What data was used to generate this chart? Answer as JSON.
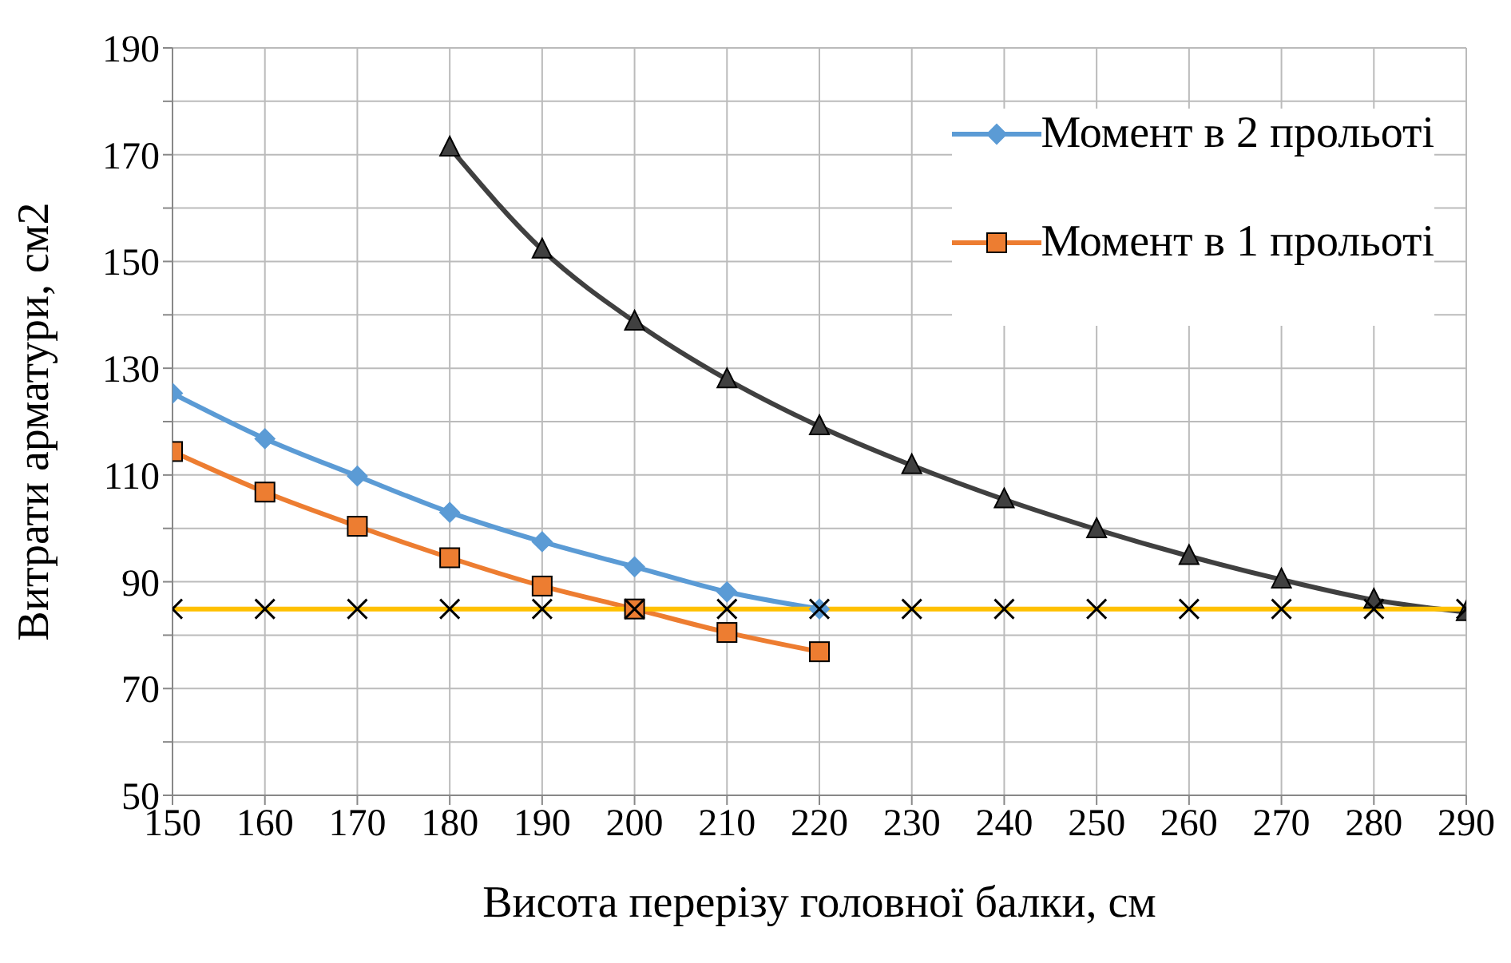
{
  "chart_data": {
    "type": "line",
    "xlabel": "Висота перерізу головної балки, см",
    "ylabel": "Витрати арматури, см2",
    "x": [
      150,
      160,
      170,
      180,
      190,
      200,
      210,
      220,
      230,
      240,
      250,
      260,
      270,
      280,
      290
    ],
    "series": [
      {
        "name": "Момент в 2 прольоті",
        "color": "#5b9bd5",
        "marker": "diamond",
        "values": [
          125.3,
          116.8,
          109.8,
          103.0,
          97.5,
          92.8,
          88.1,
          84.9,
          null,
          null,
          null,
          null,
          null,
          null,
          null
        ]
      },
      {
        "name": "Момент в 1 прольоті",
        "color": "#ed7d31",
        "marker": "square",
        "values": [
          114.4,
          106.8,
          100.4,
          94.5,
          89.2,
          84.9,
          80.5,
          76.9,
          null,
          null,
          null,
          null,
          null,
          null,
          null
        ]
      },
      {
        "color": "#404040",
        "marker": "triangle",
        "values": [
          null,
          null,
          null,
          171.3,
          152.2,
          138.7,
          127.9,
          119.1,
          111.8,
          105.4,
          99.8,
          94.8,
          90.4,
          86.6,
          84.3
        ]
      },
      {
        "color": "#ffc000",
        "marker": "cross",
        "values": [
          84.9,
          84.9,
          84.9,
          84.9,
          84.9,
          84.9,
          84.9,
          84.9,
          84.9,
          84.9,
          84.9,
          84.9,
          84.9,
          84.9,
          84.9
        ]
      }
    ],
    "xlim": [
      150,
      290
    ],
    "xticks": [
      150,
      160,
      170,
      180,
      190,
      200,
      210,
      220,
      230,
      240,
      250,
      260,
      270,
      280,
      290
    ],
    "ylim": [
      50,
      190
    ],
    "yticks": [
      50,
      {
        "value": 60,
        "label": null
      },
      70,
      {
        "value": 80,
        "label": null
      },
      90,
      {
        "value": 100,
        "label": null
      },
      110,
      {
        "value": 120,
        "label": null
      },
      130,
      {
        "value": 140,
        "label": null
      },
      150,
      {
        "value": 160,
        "label": null
      },
      170,
      {
        "value": 180,
        "label": null
      },
      190
    ],
    "grid": true,
    "legend": "top right",
    "line_style": "solid"
  }
}
